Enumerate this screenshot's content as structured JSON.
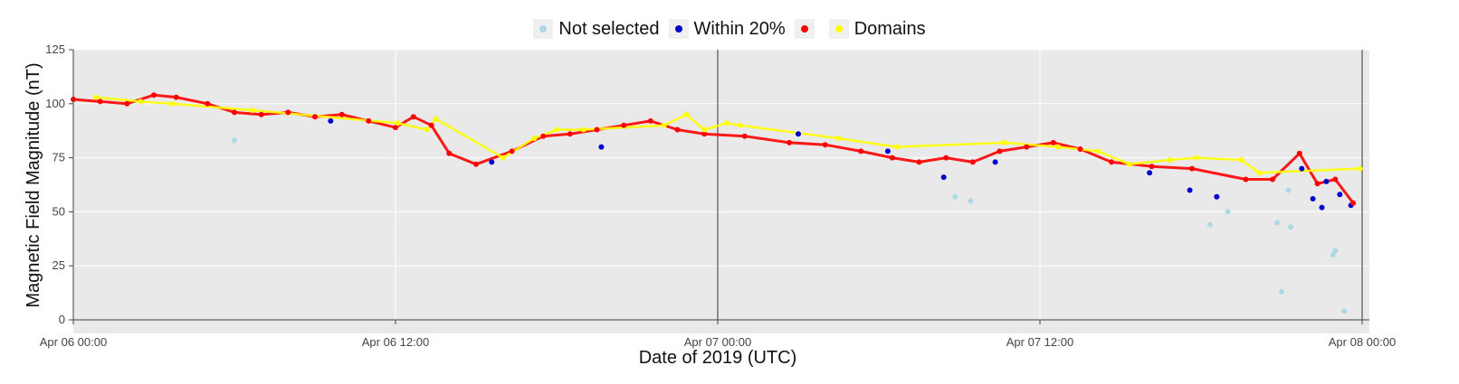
{
  "chart_data": {
    "type": "scatter",
    "title": "",
    "xlabel": "Date of 2019 (UTC)",
    "ylabel": "Magnetic Field Magnitude (nT)",
    "x_range": [
      "2019-04-06 00:00",
      "2019-04-08 00:00"
    ],
    "ylim": [
      0,
      125
    ],
    "x_ticks": [
      {
        "label": "Apr 06 00:00",
        "t": "2019-04-06 00:00"
      },
      {
        "label": "Apr 06 12:00",
        "t": "2019-04-06 12:00"
      },
      {
        "label": "Apr 07 00:00",
        "t": "2019-04-07 00:00"
      },
      {
        "label": "Apr 07 12:00",
        "t": "2019-04-07 12:00"
      },
      {
        "label": "Apr 08 00:00",
        "t": "2019-04-08 00:00"
      }
    ],
    "y_ticks": [
      0,
      25,
      50,
      75,
      100,
      125
    ],
    "vertical_lines": [
      "2019-04-06 00:00",
      "2019-04-07 00:00",
      "2019-04-08 00:00"
    ],
    "grid": true,
    "legend_position": "top-center",
    "colors": {
      "not_selected": "#add8e6",
      "within_20": "#0000cd",
      "unlabeled": "#ff0000",
      "domains": "#ffff00",
      "plot_bg": "#e9e9e9",
      "grid": "#ffffff"
    },
    "series": [
      {
        "name": "Not selected",
        "color": "#add8e6",
        "x": [
          "2019-04-06 06:00",
          "2019-04-07 08:50",
          "2019-04-07 09:25",
          "2019-04-07 18:20",
          "2019-04-07 19:00",
          "2019-04-07 20:50",
          "2019-04-07 21:00",
          "2019-04-07 21:15",
          "2019-04-07 21:20",
          "2019-04-07 22:55",
          "2019-04-07 23:00",
          "2019-04-07 23:20"
        ],
        "y": [
          83,
          57,
          55,
          44,
          50,
          45,
          13,
          60,
          43,
          30,
          32,
          4
        ]
      },
      {
        "name": "Within 20%",
        "color": "#0000cd",
        "x": [
          "2019-04-06 09:35",
          "2019-04-06 15:35",
          "2019-04-06 19:40",
          "2019-04-07 03:00",
          "2019-04-07 06:20",
          "2019-04-07 08:25",
          "2019-04-07 10:20",
          "2019-04-07 16:05",
          "2019-04-07 17:35",
          "2019-04-07 18:35",
          "2019-04-07 21:45",
          "2019-04-07 22:10",
          "2019-04-07 22:30",
          "2019-04-07 22:40",
          "2019-04-07 23:10",
          "2019-04-07 23:35"
        ],
        "y": [
          92,
          73,
          80,
          86,
          78,
          66,
          73,
          68,
          60,
          57,
          70,
          56,
          52,
          64,
          58,
          53
        ]
      },
      {
        "name": "",
        "color": "#ff0000",
        "x": [
          "2019-04-06 00:00",
          "2019-04-06 01:00",
          "2019-04-06 02:00",
          "2019-04-06 03:00",
          "2019-04-06 03:50",
          "2019-04-06 05:00",
          "2019-04-06 06:00",
          "2019-04-06 07:00",
          "2019-04-06 08:00",
          "2019-04-06 09:00",
          "2019-04-06 10:00",
          "2019-04-06 11:00",
          "2019-04-06 12:00",
          "2019-04-06 12:40",
          "2019-04-06 13:20",
          "2019-04-06 14:00",
          "2019-04-06 15:00",
          "2019-04-06 16:20",
          "2019-04-06 17:30",
          "2019-04-06 18:30",
          "2019-04-06 19:30",
          "2019-04-06 20:30",
          "2019-04-06 21:30",
          "2019-04-06 22:30",
          "2019-04-06 23:30",
          "2019-04-07 01:00",
          "2019-04-07 02:40",
          "2019-04-07 04:00",
          "2019-04-07 05:20",
          "2019-04-07 06:30",
          "2019-04-07 07:30",
          "2019-04-07 08:30",
          "2019-04-07 09:30",
          "2019-04-07 10:30",
          "2019-04-07 11:30",
          "2019-04-07 12:30",
          "2019-04-07 13:30",
          "2019-04-07 14:40",
          "2019-04-07 16:10",
          "2019-04-07 17:40",
          "2019-04-07 19:40",
          "2019-04-07 20:40",
          "2019-04-07 21:40",
          "2019-04-07 22:20",
          "2019-04-07 23:00",
          "2019-04-07 23:40"
        ],
        "y": [
          102,
          101,
          100,
          104,
          103,
          100,
          96,
          95,
          96,
          94,
          95,
          92,
          89,
          94,
          90,
          77,
          72,
          78,
          85,
          86,
          88,
          90,
          92,
          88,
          86,
          85,
          82,
          81,
          78,
          75,
          73,
          75,
          73,
          78,
          80,
          82,
          79,
          73,
          71,
          70,
          65,
          65,
          77,
          63,
          65,
          54
        ]
      },
      {
        "name": "Domains",
        "color": "#ffff00",
        "x": [
          "2019-04-06 00:50",
          "2019-04-06 02:30",
          "2019-04-06 03:40",
          "2019-04-06 06:40",
          "2019-04-06 12:05",
          "2019-04-06 13:10",
          "2019-04-06 13:30",
          "2019-04-06 16:00",
          "2019-04-06 17:10",
          "2019-04-06 18:00",
          "2019-04-06 19:00",
          "2019-04-06 22:00",
          "2019-04-06 22:50",
          "2019-04-06 23:30",
          "2019-04-07 00:20",
          "2019-04-07 00:50",
          "2019-04-07 04:30",
          "2019-04-07 06:40",
          "2019-04-07 10:40",
          "2019-04-07 12:40",
          "2019-04-07 14:10",
          "2019-04-07 15:20",
          "2019-04-07 16:50",
          "2019-04-07 17:50",
          "2019-04-07 19:30",
          "2019-04-07 20:10",
          "2019-04-07 23:55"
        ],
        "y": [
          103,
          101,
          100,
          97,
          91,
          88,
          93,
          75,
          84,
          88,
          88,
          90,
          95,
          88,
          91,
          90,
          84,
          80,
          82,
          80,
          78,
          72,
          74,
          75,
          74,
          68,
          70
        ]
      }
    ]
  }
}
